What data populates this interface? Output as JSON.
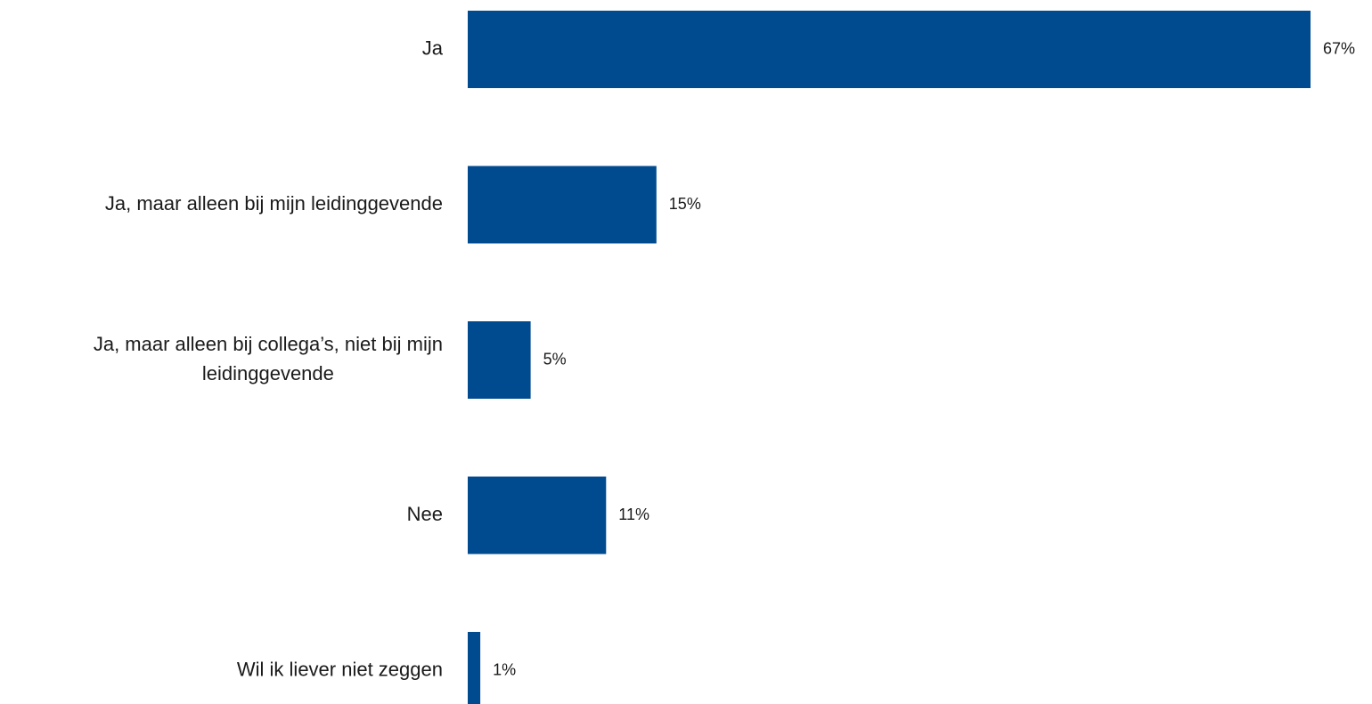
{
  "chart_data": {
    "type": "bar",
    "orientation": "horizontal",
    "categories": [
      "Ja",
      "Ja, maar alleen bij mijn leidinggevende",
      "Ja, maar alleen bij collega’s, niet bij mijn leidinggevende",
      "Nee",
      "Wil ik liever niet zeggen"
    ],
    "category_lines": [
      [
        "Ja"
      ],
      [
        "Ja, maar alleen bij mijn leidinggevende"
      ],
      [
        "Ja, maar alleen bij collega’s, niet bij mijn",
        "leidinggevende"
      ],
      [
        "Nee"
      ],
      [
        "Wil ik liever niet zeggen"
      ]
    ],
    "values": [
      67,
      15,
      5,
      11,
      1
    ],
    "value_labels": [
      "67%",
      "15%",
      "5%",
      "11%",
      "1%"
    ],
    "unit": "%",
    "title": "",
    "xlabel": "",
    "ylabel": "",
    "xlim": [
      0,
      67
    ],
    "grid": false,
    "legend": "none",
    "bar_color": "#004a8f"
  }
}
